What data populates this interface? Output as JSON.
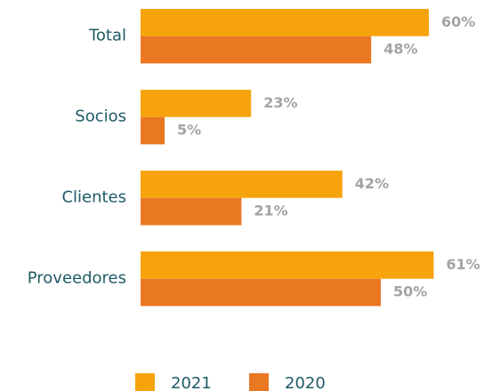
{
  "chart_data": {
    "type": "bar",
    "orientation": "horizontal",
    "categories": [
      "Total",
      "Socios",
      "Clientes",
      "Proveedores"
    ],
    "series": [
      {
        "name": "2021",
        "color": "#f7a30b",
        "values": [
          60,
          23,
          42,
          61
        ],
        "value_labels": [
          "60%",
          "23%",
          "42%",
          "61%"
        ]
      },
      {
        "name": "2020",
        "color": "#ea7823",
        "values": [
          48,
          5,
          21,
          50
        ],
        "value_labels": [
          "48%",
          "5%",
          "21%",
          "50%"
        ]
      }
    ],
    "legend": "bottom"
  }
}
